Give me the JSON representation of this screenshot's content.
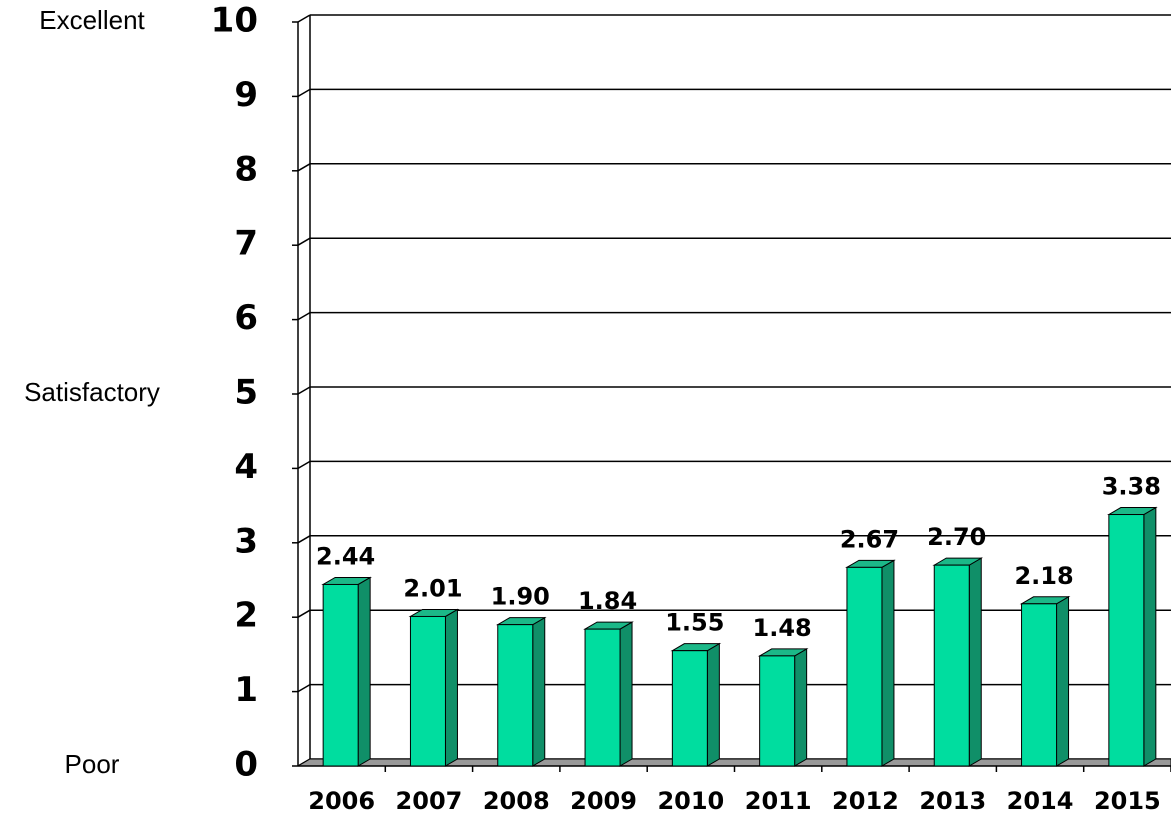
{
  "chart_data": {
    "type": "bar",
    "categories": [
      "2006",
      "2007",
      "2008",
      "2009",
      "2010",
      "2011",
      "2012",
      "2013",
      "2014",
      "2015"
    ],
    "values": [
      2.44,
      2.01,
      1.9,
      1.84,
      1.55,
      1.48,
      2.67,
      2.7,
      2.18,
      3.38
    ],
    "value_labels": [
      "2.44",
      "2.01",
      "1.90",
      "1.84",
      "1.55",
      "1.48",
      "2.67",
      "2.70",
      "2.18",
      "3.38"
    ],
    "color": "#00dd9f",
    "ylim": [
      0,
      10
    ],
    "yticks": [
      0,
      1,
      2,
      3,
      4,
      5,
      6,
      7,
      8,
      9,
      10
    ],
    "grid": true,
    "annotations": [
      {
        "text": "Excellent",
        "y": 10
      },
      {
        "text": "Satisfactory",
        "y": 5
      },
      {
        "text": "Poor",
        "y": 0
      }
    ]
  }
}
